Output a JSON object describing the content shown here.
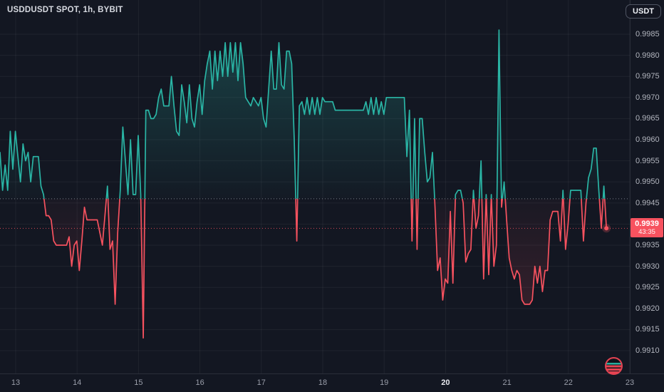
{
  "header": {
    "symbol_title": "USDDUSDT SPOT, 1h, BYBIT",
    "currency_button": "USDT"
  },
  "price_badge": {
    "price": "0.9939",
    "countdown": "43:35"
  },
  "colors": {
    "background": "#131722",
    "up_line": "#2ab5a5",
    "down_line": "#f7525f",
    "badge": "#f7525f",
    "baseline_dotted": "#787d89",
    "axis_text": "#b2b5be",
    "grid": "rgba(250,250,255,0.055)"
  },
  "icons": {
    "bottom_right": "symbol-logo-icon"
  },
  "chart_data": {
    "type": "line",
    "title": "USDDUSDT SPOT, 1h, BYBIT",
    "symbol": "USDDUSDT",
    "market": "SPOT",
    "interval": "1h",
    "exchange": "BYBIT",
    "legend_position": "none",
    "grid": true,
    "ylim": [
      0.9908,
      0.9989
    ],
    "baseline": 0.9946,
    "last_price": 0.9939,
    "countdown": "43:35",
    "y_ticks": [
      0.9985,
      0.998,
      0.9975,
      0.997,
      0.9965,
      0.996,
      0.9955,
      0.995,
      0.9945,
      0.994,
      0.9935,
      0.993,
      0.9925,
      0.992,
      0.9915,
      0.991
    ],
    "x_ticks": [
      {
        "label": "13",
        "bold": false
      },
      {
        "label": "14",
        "bold": false
      },
      {
        "label": "15",
        "bold": false
      },
      {
        "label": "16",
        "bold": false
      },
      {
        "label": "17",
        "bold": false
      },
      {
        "label": "18",
        "bold": false
      },
      {
        "label": "19",
        "bold": false
      },
      {
        "label": "20",
        "bold": true
      },
      {
        "label": "21",
        "bold": false
      },
      {
        "label": "22",
        "bold": false
      },
      {
        "label": "23",
        "bold": false
      }
    ],
    "points_per_day": 24,
    "series": [
      {
        "name": "USDDUSDT close",
        "values": [
          0.9957,
          0.9948,
          0.9954,
          0.9948,
          0.9962,
          0.9953,
          0.9962,
          0.9956,
          0.995,
          0.9959,
          0.9955,
          0.9957,
          0.995,
          0.9956,
          0.9956,
          0.9956,
          0.9949,
          0.9947,
          0.9942,
          0.9942,
          0.9941,
          0.9936,
          0.9935,
          0.9935,
          0.9935,
          0.9935,
          0.9935,
          0.9937,
          0.993,
          0.9935,
          0.9936,
          0.9929,
          0.9936,
          0.9944,
          0.9941,
          0.9941,
          0.9941,
          0.9941,
          0.9941,
          0.9938,
          0.9935,
          0.9942,
          0.9949,
          0.9934,
          0.9936,
          0.9921,
          0.9938,
          0.9948,
          0.9963,
          0.9955,
          0.9947,
          0.996,
          0.9947,
          0.9947,
          0.9961,
          0.9947,
          0.9913,
          0.9967,
          0.9967,
          0.9965,
          0.9965,
          0.9966,
          0.997,
          0.9972,
          0.9968,
          0.9968,
          0.9968,
          0.9975,
          0.9968,
          0.9962,
          0.9961,
          0.9973,
          0.9969,
          0.9964,
          0.9973,
          0.9965,
          0.9963,
          0.9969,
          0.9973,
          0.9966,
          0.9974,
          0.9978,
          0.9981,
          0.9972,
          0.9981,
          0.9974,
          0.9981,
          0.9975,
          0.9983,
          0.9975,
          0.9983,
          0.9976,
          0.9983,
          0.9974,
          0.9983,
          0.9978,
          0.997,
          0.9969,
          0.9968,
          0.997,
          0.9969,
          0.9968,
          0.997,
          0.9965,
          0.9963,
          0.9972,
          0.9981,
          0.9972,
          0.9972,
          0.9983,
          0.9973,
          0.9972,
          0.9981,
          0.9981,
          0.9978,
          0.996,
          0.9936,
          0.9968,
          0.9969,
          0.9966,
          0.997,
          0.9966,
          0.997,
          0.9966,
          0.997,
          0.9966,
          0.997,
          0.9969,
          0.9969,
          0.9969,
          0.9969,
          0.9967,
          0.9967,
          0.9967,
          0.9967,
          0.9967,
          0.9967,
          0.9967,
          0.9967,
          0.9967,
          0.9967,
          0.9967,
          0.9967,
          0.9969,
          0.9966,
          0.997,
          0.9966,
          0.997,
          0.9966,
          0.9969,
          0.9966,
          0.997,
          0.997,
          0.997,
          0.997,
          0.997,
          0.997,
          0.997,
          0.997,
          0.9956,
          0.9967,
          0.9936,
          0.9965,
          0.9934,
          0.9965,
          0.9965,
          0.9957,
          0.995,
          0.9951,
          0.9957,
          0.9944,
          0.9929,
          0.9932,
          0.9922,
          0.9927,
          0.9926,
          0.9943,
          0.9926,
          0.9947,
          0.9948,
          0.9948,
          0.9945,
          0.9931,
          0.9933,
          0.9934,
          0.9948,
          0.9939,
          0.9942,
          0.9955,
          0.9927,
          0.9947,
          0.9928,
          0.9947,
          0.993,
          0.9935,
          0.9986,
          0.9944,
          0.995,
          0.9941,
          0.9932,
          0.9929,
          0.9927,
          0.9929,
          0.9928,
          0.9922,
          0.9921,
          0.9921,
          0.9921,
          0.9922,
          0.993,
          0.9926,
          0.993,
          0.9924,
          0.9929,
          0.9929,
          0.9941,
          0.9943,
          0.9943,
          0.9943,
          0.9936,
          0.9948,
          0.9934,
          0.994,
          0.9948,
          0.9948,
          0.9948,
          0.9948,
          0.9948,
          0.9936,
          0.9945,
          0.9951,
          0.9953,
          0.9958,
          0.9958,
          0.9948,
          0.9939,
          0.9949,
          0.9939
        ]
      }
    ]
  }
}
